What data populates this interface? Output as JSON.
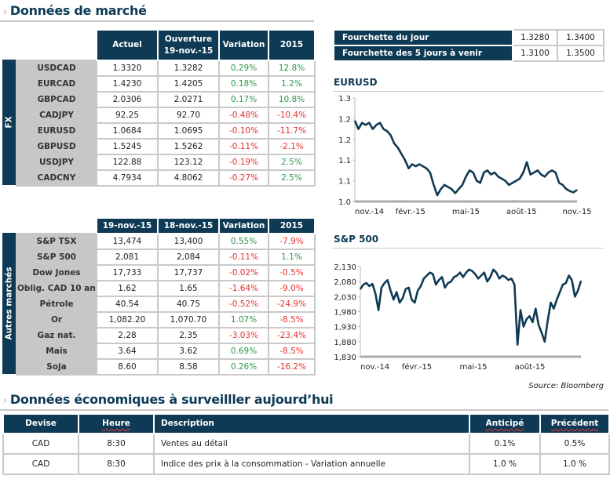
{
  "market": {
    "title": "Données de marché",
    "fx": {
      "side_label": "FX",
      "headers": [
        "Actuel",
        "Ouverture",
        "19-nov.-15",
        "Variation",
        "2015"
      ],
      "rows": [
        {
          "name": "USDCAD",
          "actuel": "1.3320",
          "ouverture": "1.3282",
          "variation": "0.29%",
          "ytd": "12.8%"
        },
        {
          "name": "EURCAD",
          "actuel": "1.4230",
          "ouverture": "1.4205",
          "variation": "0.18%",
          "ytd": "1.2%"
        },
        {
          "name": "GBPCAD",
          "actuel": "2.0306",
          "ouverture": "2.0271",
          "variation": "0.17%",
          "ytd": "10.8%"
        },
        {
          "name": "CADJPY",
          "actuel": "92.25",
          "ouverture": "92.70",
          "variation": "-0.48%",
          "ytd": "-10.4%"
        },
        {
          "name": "EURUSD",
          "actuel": "1.0684",
          "ouverture": "1.0695",
          "variation": "-0.10%",
          "ytd": "-11.7%"
        },
        {
          "name": "GBPUSD",
          "actuel": "1.5245",
          "ouverture": "1.5262",
          "variation": "-0.11%",
          "ytd": "-2.1%"
        },
        {
          "name": "USDJPY",
          "actuel": "122.88",
          "ouverture": "123.12",
          "variation": "-0.19%",
          "ytd": "2.5%"
        },
        {
          "name": "CADCNY",
          "actuel": "4.7934",
          "ouverture": "4.8062",
          "variation": "-0.27%",
          "ytd": "2.5%"
        }
      ]
    },
    "other": {
      "side_label": "Autres marchés",
      "headers": [
        "19-nov.-15",
        "18-nov.-15",
        "Variation",
        "2015"
      ],
      "rows": [
        {
          "name": "S&P TSX",
          "c1": "13,474",
          "c2": "13,400",
          "variation": "0.55%",
          "ytd": "-7.9%"
        },
        {
          "name": "S&P 500",
          "c1": "2,081",
          "c2": "2,084",
          "variation": "-0.11%",
          "ytd": "1.1%"
        },
        {
          "name": "Dow Jones",
          "c1": "17,733",
          "c2": "17,737",
          "variation": "-0.02%",
          "ytd": "-0.5%"
        },
        {
          "name": "Oblig. CAD 10 ans",
          "c1": "1.62",
          "c2": "1.65",
          "variation": "-1.64%",
          "ytd": "-9.0%"
        },
        {
          "name": "Pétrole",
          "c1": "40.54",
          "c2": "40.75",
          "variation": "-0.52%",
          "ytd": "-24.9%"
        },
        {
          "name": "Or",
          "c1": "1,082.20",
          "c2": "1,070.70",
          "variation": "1.07%",
          "ytd": "-8.5%"
        },
        {
          "name": "Gaz nat.",
          "c1": "2.28",
          "c2": "2.35",
          "variation": "-3.03%",
          "ytd": "-23.4%"
        },
        {
          "name": "Maïs",
          "c1": "3.64",
          "c2": "3.62",
          "variation": "0.69%",
          "ytd": "-8.5%"
        },
        {
          "name": "Soja",
          "c1": "8.60",
          "c2": "8.58",
          "variation": "0.26%",
          "ytd": "-16.2%"
        }
      ]
    },
    "ranges": [
      {
        "label": "Fourchette du  jour",
        "low": "1.3280",
        "high": "1.3400"
      },
      {
        "label": "Fourchette des 5 jours à venir",
        "low": "1.3100",
        "high": "1.3500"
      }
    ],
    "source": "Source: Bloomberg"
  },
  "colors": {
    "navy": "#0e3a55",
    "positive": "#2e9a4c",
    "negative": "#e8302f",
    "label_bg": "#c6c7c9"
  },
  "chart_data": [
    {
      "type": "line",
      "title": "EURUSD",
      "ylim": [
        1.05,
        1.3
      ],
      "yticks": [
        1.3,
        1.25,
        1.2,
        1.15,
        1.1,
        1.05
      ],
      "ytick_labels": [
        "1.3",
        "1.2",
        "1.2",
        "1.1",
        "1.1",
        "1.0"
      ],
      "xtick_labels": [
        "nov.-14",
        "févr.-15",
        "mai-15",
        "août-15",
        "nov.-15"
      ],
      "grid": false,
      "values": [
        1.245,
        1.225,
        1.24,
        1.235,
        1.24,
        1.225,
        1.235,
        1.24,
        1.225,
        1.22,
        1.21,
        1.19,
        1.18,
        1.165,
        1.15,
        1.13,
        1.14,
        1.135,
        1.14,
        1.135,
        1.13,
        1.12,
        1.09,
        1.065,
        1.08,
        1.09,
        1.085,
        1.08,
        1.07,
        1.08,
        1.09,
        1.11,
        1.125,
        1.12,
        1.1,
        1.095,
        1.12,
        1.125,
        1.115,
        1.12,
        1.11,
        1.105,
        1.1,
        1.09,
        1.095,
        1.1,
        1.105,
        1.12,
        1.145,
        1.115,
        1.12,
        1.125,
        1.115,
        1.11,
        1.12,
        1.125,
        1.12,
        1.095,
        1.09,
        1.08,
        1.075,
        1.072,
        1.078
      ]
    },
    {
      "type": "line",
      "title": "S&P 500",
      "ylim": [
        1830,
        2130
      ],
      "yticks": [
        2130,
        2080,
        2030,
        1980,
        1930,
        1880,
        1830
      ],
      "ytick_labels": [
        "2,130",
        "2,080",
        "2,030",
        "1,980",
        "1,930",
        "1,880",
        "1,830"
      ],
      "xtick_labels": [
        "nov.-14",
        "févr.-15",
        "mai-15",
        "août-15"
      ],
      "grid": false,
      "values": [
        2055,
        2070,
        2075,
        2065,
        2072,
        2040,
        1985,
        2060,
        2075,
        2085,
        2050,
        2020,
        2045,
        2010,
        2025,
        2055,
        2060,
        2020,
        2010,
        2050,
        2065,
        2090,
        2100,
        2110,
        2105,
        2070,
        2085,
        2095,
        2060,
        2075,
        2080,
        2095,
        2100,
        2110,
        2095,
        2110,
        2120,
        2115,
        2105,
        2090,
        2100,
        2110,
        2080,
        2095,
        2120,
        2110,
        2090,
        2100,
        2095,
        2085,
        2090,
        2070,
        1870,
        1985,
        1930,
        1955,
        1965,
        1945,
        1990,
        1935,
        1910,
        1880,
        1950,
        2010,
        1990,
        2020,
        2045,
        2070,
        2075,
        2100,
        2085,
        2030,
        2050,
        2082
      ]
    }
  ],
  "economic": {
    "title": "Données économiques à surveilller aujourd’hui",
    "headers": [
      "Devise",
      "Heure",
      "Description",
      "Anticipé",
      "Précédent"
    ],
    "rows": [
      {
        "devise": "CAD",
        "heure": "8:30",
        "description": "Ventes au détail",
        "anticipe": "0.1%",
        "precedent": "0.5%"
      },
      {
        "devise": "CAD",
        "heure": "8:30",
        "description": "Indice des prix à la consommation - Variation annuelle",
        "anticipe": "1.0 %",
        "precedent": "1.0 %"
      }
    ]
  }
}
